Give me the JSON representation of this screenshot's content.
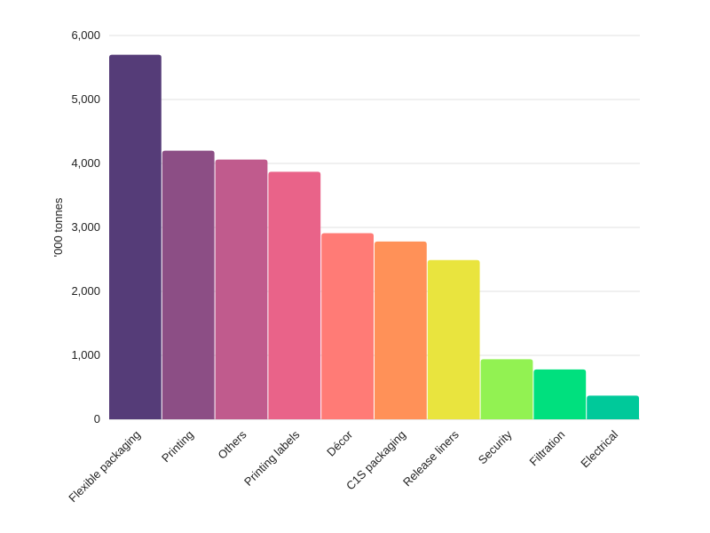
{
  "chart_data": {
    "type": "bar",
    "categories": [
      "Flexible packaging",
      "Printing",
      "Others",
      "Printing labels",
      "Décor",
      "C1S packaging",
      "Release liners",
      "Security",
      "Filtration",
      "Electrical"
    ],
    "values": [
      5700,
      4200,
      4060,
      3870,
      2910,
      2780,
      2490,
      940,
      780,
      370
    ],
    "colors": [
      "#553c78",
      "#8c4e85",
      "#c05b8d",
      "#e96389",
      "#ff7b76",
      "#ff9158",
      "#e9e43e",
      "#92f252",
      "#00e07e",
      "#00c99a"
    ],
    "ylabel": "'000 tonnes",
    "xlabel": "",
    "title": "",
    "ylim": [
      0,
      6000
    ],
    "yticks": [
      0,
      1000,
      2000,
      3000,
      4000,
      5000,
      6000
    ],
    "ytick_labels": [
      "0",
      "1,000",
      "2,000",
      "3,000",
      "4,000",
      "5,000",
      "6,000"
    ],
    "grid": true
  }
}
